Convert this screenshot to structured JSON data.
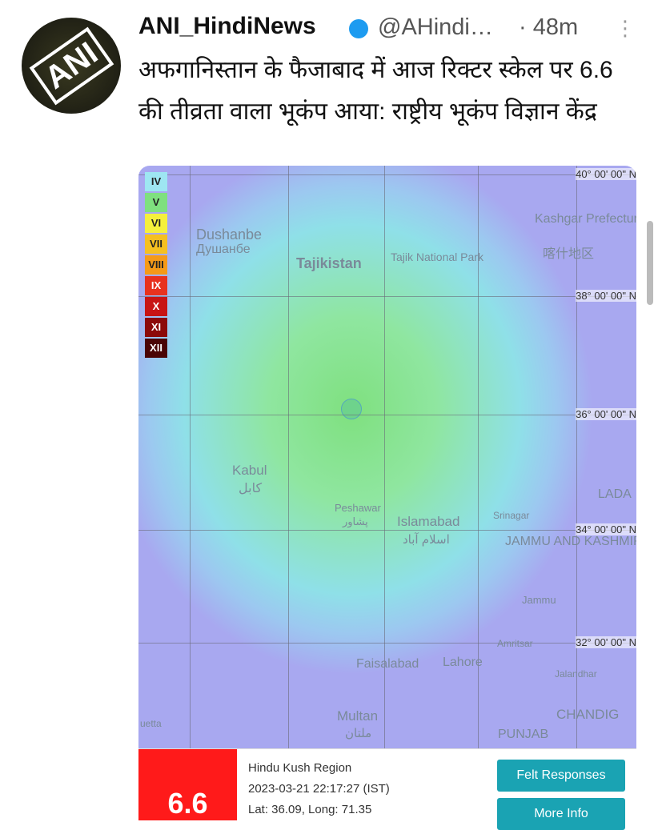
{
  "tweet": {
    "avatar": "ANI",
    "name": "ANI_HindiNews",
    "handle": "@AHindi…",
    "time": "· 48m",
    "text": "अफगानिस्तान के फैजाबाद में आज रिक्टर स्केल पर 6.6 की तीव्रता वाला भूकंप आया: राष्ट्रीय भूकंप विज्ञान केंद्र"
  },
  "map": {
    "legend": [
      {
        "label": "IV",
        "color": "#9ee6f2"
      },
      {
        "label": "V",
        "color": "#7fe07f"
      },
      {
        "label": "VI",
        "color": "#f5f03c"
      },
      {
        "label": "VII",
        "color": "#f5c020"
      },
      {
        "label": "VIII",
        "color": "#f59a18"
      },
      {
        "label": "IX",
        "color": "#e8321e"
      },
      {
        "label": "X",
        "color": "#c81414"
      },
      {
        "label": "XI",
        "color": "#8c0a0a"
      },
      {
        "label": "XII",
        "color": "#4a0505"
      }
    ],
    "latitudes": [
      "40° 00' 00\" N",
      "38° 00' 00\" N",
      "36° 00' 00\" N",
      "34° 00' 00\" N",
      "32° 00' 00\" N"
    ],
    "places": [
      "Dushanbe",
      "Душанбе",
      "Tajikistan",
      "Tajik National Park",
      "Kashgar Prefecture",
      "喀什地区",
      "Kabul",
      "کابل",
      "Peshawar",
      "پشاور",
      "Islamabad",
      "اسلام آباد",
      "Srinagar",
      "LADA",
      "JAMMU AND KASHMIR",
      "Jammu",
      "Amritsar",
      "Jalandhar",
      "Faisalabad",
      "Lahore",
      "Multan",
      "ملتان",
      "CHANDIG",
      "PUNJAB",
      "uetta"
    ]
  },
  "panel": {
    "magnitude": "6.6",
    "region": "Hindu Kush Region",
    "time": "2023-03-21 22:17:27 (IST)",
    "location": "Lat: 36.09, Long: 71.35",
    "buttons": [
      "Felt Responses",
      "More Info"
    ]
  }
}
